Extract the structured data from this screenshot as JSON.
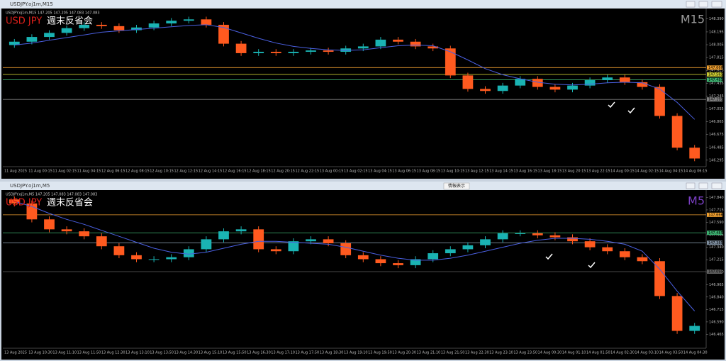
{
  "chart_data": [
    {
      "type": "candlestick",
      "window_title": "USDJPY.oj1m,M15",
      "header": "USDJPY.oj1m,M15 147.205 147.205 147.083 147.083",
      "symbol": "USD JPY",
      "title": "週末反省会",
      "timeframe": "M15",
      "timeframe_color": "#9a9a9a",
      "up_color": "#1ab3b3",
      "down_color": "#ff5a1f",
      "ma_color": "#4a5fe0",
      "ylim": [
        146.22,
        148.52
      ],
      "yticks": [
        {
          "value": 148.39,
          "label": "148.390"
        },
        148.195,
        148.005,
        147.815,
        147.625,
        147.435,
        147.245,
        147.055,
        146.865,
        146.675,
        146.485,
        146.295
      ],
      "levels": [
        {
          "price": 147.666,
          "color": "#f0a030"
        },
        {
          "price": 147.565,
          "color": "#c8c832"
        },
        {
          "price": 147.485,
          "color": "#3cb371"
        },
        {
          "price": 147.195,
          "color": "#808080"
        }
      ],
      "time_labels": [
        "11 Aug 2025",
        "11 Aug 00:15",
        "11 Aug 02:15",
        "11 Aug 04:15",
        "12 Aug 06:15",
        "12 Aug 08:15",
        "12 Aug 10:15",
        "12 Aug 12:15",
        "12 Aug 14:15",
        "12 Aug 16:15",
        "12 Aug 18:15",
        "12 Aug 20:15",
        "12 Aug 22:15",
        "13 Aug 00:15",
        "13 Aug 02:15",
        "13 Aug 04:15",
        "13 Aug 06:15",
        "13 Aug 08:15",
        "13 Aug 10:15",
        "13 Aug 12:15",
        "13 Aug 14:15",
        "13 Aug 16:15",
        "13 Aug 18:15",
        "13 Aug 20:15",
        "13 Aug 22:15",
        "14 Aug 00:15",
        "14 Aug 02:15",
        "14 Aug 04:15",
        "14 Aug 06:15"
      ],
      "open": [
        148.0,
        148.05,
        148.12,
        148.18,
        148.25,
        148.3,
        148.28,
        148.22,
        148.26,
        148.32,
        148.36,
        148.38,
        148.3,
        148.02,
        147.88,
        147.9,
        147.88,
        147.9,
        147.92,
        147.9,
        147.95,
        147.98,
        148.08,
        148.05,
        147.98,
        147.95,
        147.55,
        147.35,
        147.32,
        147.4,
        147.5,
        147.38,
        147.34,
        147.4,
        147.48,
        147.52,
        147.45,
        147.38,
        146.95,
        146.48
      ],
      "close": [
        148.05,
        148.12,
        148.18,
        148.25,
        148.3,
        148.28,
        148.22,
        148.26,
        148.32,
        148.36,
        148.38,
        148.3,
        148.02,
        147.88,
        147.9,
        147.88,
        147.9,
        147.92,
        147.9,
        147.95,
        147.98,
        148.08,
        148.05,
        147.98,
        147.95,
        147.55,
        147.35,
        147.32,
        147.4,
        147.5,
        147.38,
        147.34,
        147.4,
        147.48,
        147.52,
        147.45,
        147.38,
        146.95,
        146.48,
        146.32
      ],
      "high": [
        148.09,
        148.16,
        148.22,
        148.29,
        148.34,
        148.34,
        148.32,
        148.3,
        148.36,
        148.4,
        148.42,
        148.42,
        148.34,
        148.06,
        147.94,
        147.94,
        147.94,
        147.96,
        147.96,
        147.99,
        148.02,
        148.12,
        148.12,
        148.09,
        148.02,
        147.99,
        147.59,
        147.39,
        147.44,
        147.54,
        147.54,
        147.42,
        147.44,
        147.52,
        147.56,
        147.56,
        147.49,
        147.42,
        146.99,
        146.52
      ],
      "low": [
        147.96,
        148.01,
        148.08,
        148.14,
        148.21,
        148.24,
        148.18,
        148.18,
        148.22,
        148.28,
        148.32,
        148.26,
        147.98,
        147.84,
        147.84,
        147.84,
        147.84,
        147.86,
        147.86,
        147.86,
        147.91,
        147.94,
        148.01,
        147.94,
        147.91,
        147.51,
        147.31,
        147.28,
        147.28,
        147.36,
        147.34,
        147.3,
        147.3,
        147.36,
        147.44,
        147.41,
        147.34,
        146.91,
        146.44,
        146.28
      ],
      "ma": [
        148.0,
        148.03,
        148.07,
        148.11,
        148.15,
        148.19,
        148.21,
        148.23,
        148.25,
        148.27,
        148.29,
        148.3,
        148.26,
        148.18,
        148.1,
        148.03,
        147.98,
        147.95,
        147.93,
        147.92,
        147.93,
        147.96,
        147.99,
        148.0,
        147.99,
        147.9,
        147.78,
        147.65,
        147.56,
        147.5,
        147.45,
        147.42,
        147.41,
        147.42,
        147.44,
        147.45,
        147.44,
        147.35,
        147.15,
        146.9
      ]
    },
    {
      "type": "candlestick",
      "window_title": "USDJPY.oj1m,M5",
      "header": "USDJPY.oj1m,M5 147.205 147.083 147.083 147.083",
      "symbol": "USD JPY",
      "title": "週末反省会",
      "timeframe": "M5",
      "timeframe_color": "#7b3fc4",
      "up_color": "#1ab3b3",
      "down_color": "#ff5a1f",
      "ma_color": "#4a5fe0",
      "ylim": [
        146.34,
        147.9
      ],
      "yticks": [
        {
          "value": 147.84,
          "label": "147.840"
        },
        147.715,
        {
          "value": 147.59,
          "label": "147.590"
        },
        147.465,
        {
          "value": 147.34,
          "label": "147.340"
        },
        147.215,
        {
          "value": 147.09,
          "label": "147.090"
        },
        146.965,
        {
          "value": 146.84,
          "label": "146.840"
        },
        146.715,
        {
          "value": 146.59,
          "label": "146.590"
        },
        146.465
      ],
      "levels": [
        {
          "price": 147.666,
          "color": "#f0a030"
        },
        {
          "price": 147.485,
          "color": "#3cb371"
        },
        {
          "price": 147.385,
          "color": "#7f8fa0"
        },
        {
          "price": 147.095,
          "color": "#606060"
        }
      ],
      "time_labels": [
        "13 Aug 2025",
        "13 Aug 10:30",
        "13 Aug 11:10",
        "13 Aug 11:50",
        "13 Aug 12:30",
        "13 Aug 13:10",
        "13 Aug 13:50",
        "13 Aug 14:30",
        "13 Aug 15:10",
        "13 Aug 15:50",
        "13 Aug 16:30",
        "13 Aug 17:10",
        "13 Aug 17:50",
        "13 Aug 18:30",
        "13 Aug 19:10",
        "13 Aug 19:50",
        "13 Aug 20:30",
        "13 Aug 21:10",
        "13 Aug 21:50",
        "13 Aug 22:30",
        "13 Aug 23:10",
        "13 Aug 23:50",
        "14 Aug 00:30",
        "14 Aug 01:10",
        "14 Aug 01:50",
        "14 Aug 02:30",
        "14 Aug 03:10",
        "14 Aug 03:50",
        "14 Aug 04:30"
      ],
      "open": [
        147.82,
        147.78,
        147.62,
        147.52,
        147.5,
        147.45,
        147.35,
        147.26,
        147.22,
        147.22,
        147.24,
        147.32,
        147.42,
        147.5,
        147.52,
        147.32,
        147.3,
        147.4,
        147.42,
        147.38,
        147.26,
        147.22,
        147.18,
        147.16,
        147.22,
        147.28,
        147.32,
        147.36,
        147.42,
        147.48,
        147.48,
        147.46,
        147.44,
        147.4,
        147.34,
        147.3,
        147.24,
        147.2,
        146.85,
        146.5
      ],
      "close": [
        147.78,
        147.62,
        147.52,
        147.5,
        147.45,
        147.35,
        147.26,
        147.22,
        147.22,
        147.24,
        147.32,
        147.42,
        147.5,
        147.52,
        147.32,
        147.3,
        147.4,
        147.42,
        147.38,
        147.26,
        147.22,
        147.18,
        147.16,
        147.22,
        147.28,
        147.32,
        147.36,
        147.42,
        147.48,
        147.48,
        147.46,
        147.44,
        147.4,
        147.34,
        147.3,
        147.24,
        147.2,
        146.85,
        146.5,
        146.55
      ],
      "high": [
        147.85,
        147.81,
        147.65,
        147.55,
        147.53,
        147.48,
        147.38,
        147.29,
        147.25,
        147.27,
        147.35,
        147.45,
        147.53,
        147.55,
        147.55,
        147.35,
        147.43,
        147.45,
        147.45,
        147.41,
        147.29,
        147.25,
        147.21,
        147.25,
        147.31,
        147.35,
        147.39,
        147.45,
        147.51,
        147.51,
        147.51,
        147.49,
        147.47,
        147.43,
        147.37,
        147.33,
        147.27,
        147.23,
        146.88,
        146.58
      ],
      "low": [
        147.75,
        147.59,
        147.49,
        147.47,
        147.42,
        147.32,
        147.23,
        147.19,
        147.19,
        147.19,
        147.21,
        147.29,
        147.39,
        147.47,
        147.29,
        147.27,
        147.27,
        147.37,
        147.35,
        147.23,
        147.19,
        147.15,
        147.13,
        147.13,
        147.19,
        147.25,
        147.29,
        147.33,
        147.39,
        147.45,
        147.43,
        147.41,
        147.37,
        147.31,
        147.27,
        147.21,
        147.17,
        146.82,
        146.47,
        146.47
      ],
      "ma": [
        147.8,
        147.75,
        147.68,
        147.62,
        147.57,
        147.51,
        147.45,
        147.39,
        147.33,
        147.29,
        147.27,
        147.29,
        147.33,
        147.37,
        147.4,
        147.4,
        147.39,
        147.38,
        147.37,
        147.34,
        147.3,
        147.26,
        147.23,
        147.21,
        147.21,
        147.23,
        147.26,
        147.3,
        147.34,
        147.38,
        147.41,
        147.43,
        147.43,
        147.42,
        147.4,
        147.37,
        147.3,
        147.12,
        146.9,
        146.7
      ]
    }
  ],
  "info_button": "情報表示"
}
